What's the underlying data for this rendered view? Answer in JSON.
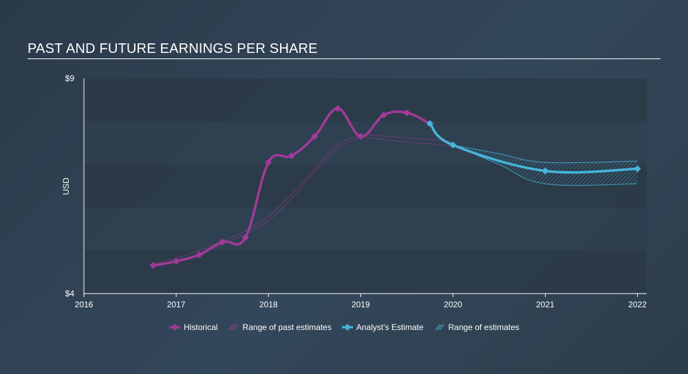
{
  "title": "PAST AND FUTURE EARNINGS PER SHARE",
  "colors": {
    "historical": "#a23a9a",
    "estimate": "#47b6dc",
    "band_light": "#2f3f50",
    "band_dark": "#2b3947",
    "axis": "#ffffff"
  },
  "chart_data": {
    "type": "line",
    "ylabel": "USD",
    "ylim": [
      4,
      9
    ],
    "xlim": [
      2016,
      2022.1
    ],
    "y_ticks": [
      "$4",
      "$9"
    ],
    "x_ticks": [
      "2016",
      "2017",
      "2018",
      "2019",
      "2020",
      "2021",
      "2022"
    ],
    "series": [
      {
        "name": "Historical",
        "x": [
          2016.75,
          2017.0,
          2017.25,
          2017.5,
          2017.75,
          2018.0,
          2018.25,
          2018.5,
          2018.75,
          2019.0,
          2019.25,
          2019.5,
          2019.75
        ],
        "y": [
          4.65,
          4.75,
          4.9,
          5.2,
          5.3,
          7.05,
          7.2,
          7.65,
          8.3,
          7.65,
          8.15,
          8.2,
          7.95
        ]
      },
      {
        "name": "Range of past estimates",
        "upper": {
          "x": [
            2016.75,
            2017.0,
            2017.25,
            2017.5,
            2017.75,
            2018.0,
            2018.25,
            2018.5,
            2018.75,
            2019.0,
            2019.25,
            2019.5,
            2019.75,
            2020.0
          ],
          "y": [
            4.7,
            4.82,
            5.0,
            5.22,
            5.45,
            5.8,
            6.3,
            6.9,
            7.45,
            7.68,
            7.66,
            7.62,
            7.58,
            7.52
          ]
        },
        "lower": {
          "x": [
            2016.75,
            2017.0,
            2017.25,
            2017.5,
            2017.75,
            2018.0,
            2018.25,
            2018.5,
            2018.75,
            2019.0,
            2019.25,
            2019.5,
            2019.75,
            2020.0
          ],
          "y": [
            4.65,
            4.76,
            4.92,
            5.15,
            5.38,
            5.7,
            6.2,
            6.82,
            7.36,
            7.62,
            7.58,
            7.52,
            7.48,
            7.43
          ]
        }
      },
      {
        "name": "Analyst's Estimate",
        "x": [
          2019.75,
          2020.0,
          2021.0,
          2022.0
        ],
        "y": [
          7.95,
          7.45,
          6.85,
          6.9
        ]
      },
      {
        "name": "Range of estimates",
        "upper": {
          "x": [
            2020.0,
            2020.5,
            2021.0,
            2022.0
          ],
          "y": [
            7.45,
            7.25,
            7.05,
            7.08
          ]
        },
        "lower": {
          "x": [
            2020.0,
            2020.5,
            2021.0,
            2022.0
          ],
          "y": [
            7.45,
            7.0,
            6.55,
            6.55
          ]
        }
      }
    ],
    "legend": [
      {
        "label": "Historical",
        "kind": "historical"
      },
      {
        "label": "Range of past estimates",
        "kind": "past_range"
      },
      {
        "label": "Analyst's Estimate",
        "kind": "estimate"
      },
      {
        "label": "Range of estimates",
        "kind": "est_range"
      }
    ],
    "legend_position": "bottom",
    "grid": "horizontal bands"
  }
}
